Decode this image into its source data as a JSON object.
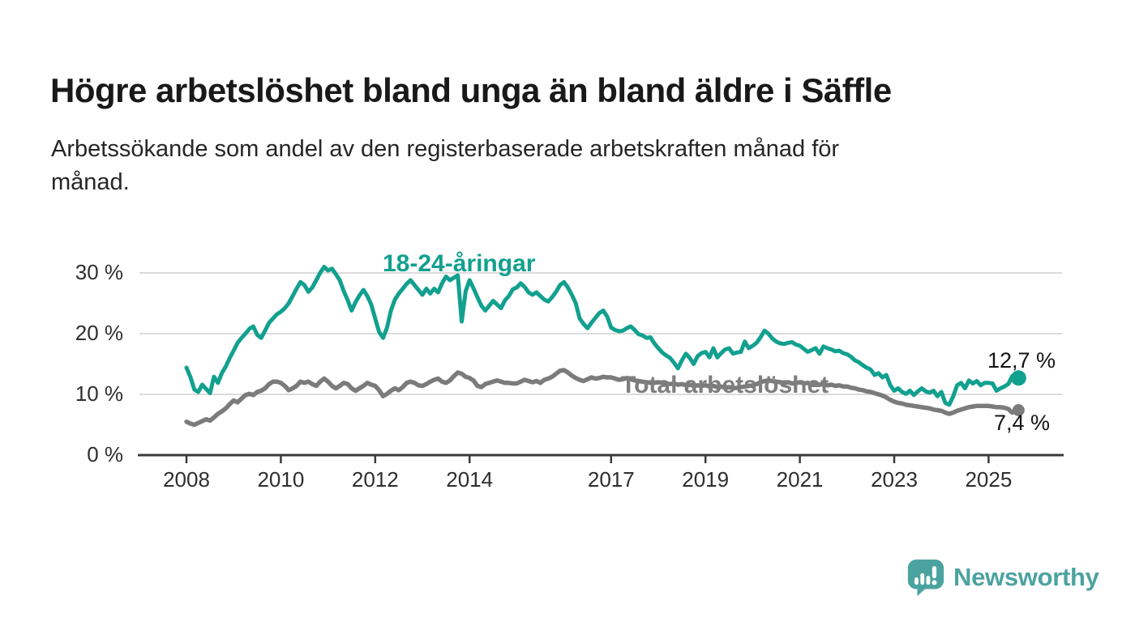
{
  "chart_data": {
    "type": "line",
    "title": "Högre arbetslöshet bland unga än bland äldre i Säffle",
    "subtitle_line1": "Arbetssökande som andel av den registerbaserade arbetskraften månad för",
    "subtitle_line2": "månad.",
    "unit": "%",
    "grid": true,
    "legend_position": "inline-labels-on-chart",
    "x_start_year": 2008,
    "x_step_months": 1,
    "x_end": "2025-08",
    "ylim": [
      0,
      33
    ],
    "y_ticks": [
      {
        "label": "30 %",
        "value": 30
      },
      {
        "label": "20 %",
        "value": 20
      },
      {
        "label": "10 %",
        "value": 10
      },
      {
        "label": "0 %",
        "value": 0
      }
    ],
    "x_ticks": [
      {
        "label": "2008",
        "year": 2008
      },
      {
        "label": "2010",
        "year": 2010
      },
      {
        "label": "2012",
        "year": 2012
      },
      {
        "label": "2014",
        "year": 2014
      },
      {
        "label": "2017",
        "year": 2017
      },
      {
        "label": "2019",
        "year": 2019
      },
      {
        "label": "2021",
        "year": 2021
      },
      {
        "label": "2023",
        "year": 2023
      },
      {
        "label": "2025",
        "year": 2025
      }
    ],
    "series": [
      {
        "name": "18-24-åringar",
        "color": "#12a08f",
        "end_label": "12,7 %",
        "end_value": 12.7,
        "values": [
          14.4,
          12.9,
          10.8,
          10.4,
          11.6,
          10.9,
          10.2,
          12.9,
          11.9,
          13.5,
          14.6,
          16.0,
          17.2,
          18.5,
          19.3,
          20.0,
          20.8,
          21.2,
          19.8,
          19.3,
          20.5,
          21.8,
          22.5,
          23.2,
          23.6,
          24.2,
          25.0,
          26.2,
          27.4,
          28.5,
          28.0,
          26.9,
          27.6,
          28.8,
          30.0,
          31.0,
          30.4,
          30.7,
          29.8,
          28.8,
          27.0,
          25.5,
          23.8,
          25.2,
          26.3,
          27.2,
          26.2,
          24.8,
          22.5,
          20.3,
          19.3,
          21.0,
          23.8,
          25.6,
          26.6,
          27.4,
          28.2,
          28.8,
          28.0,
          27.2,
          26.4,
          27.4,
          26.6,
          27.4,
          26.8,
          28.3,
          29.4,
          28.8,
          29.2,
          29.6,
          22.0,
          27.0,
          28.8,
          27.5,
          26.0,
          24.6,
          23.8,
          24.6,
          25.4,
          24.8,
          24.2,
          25.5,
          26.2,
          27.3,
          27.6,
          28.3,
          27.7,
          26.8,
          26.4,
          26.8,
          26.2,
          25.6,
          25.3,
          26.0,
          26.9,
          28.0,
          28.5,
          27.6,
          26.4,
          25.0,
          22.5,
          21.6,
          20.9,
          21.8,
          22.6,
          23.4,
          23.8,
          22.8,
          21.0,
          20.6,
          20.4,
          20.5,
          20.9,
          21.2,
          20.6,
          19.9,
          19.7,
          19.3,
          19.4,
          18.4,
          17.6,
          16.9,
          16.4,
          16.0,
          15.2,
          14.3,
          15.6,
          16.7,
          16.0,
          15.0,
          16.3,
          16.8,
          17.0,
          16.1,
          17.6,
          16.1,
          16.8,
          17.4,
          17.6,
          16.7,
          16.9,
          17.0,
          18.7,
          17.6,
          18.0,
          18.5,
          19.4,
          20.5,
          20.0,
          19.2,
          18.7,
          18.4,
          18.3,
          18.5,
          18.6,
          18.2,
          18.0,
          17.5,
          17.0,
          17.3,
          17.6,
          16.7,
          17.9,
          17.6,
          17.4,
          17.1,
          17.2,
          16.8,
          16.6,
          16.2,
          15.6,
          15.3,
          14.8,
          14.4,
          14.1,
          13.2,
          13.5,
          12.8,
          13.2,
          11.5,
          10.6,
          11.0,
          10.4,
          10.1,
          10.6,
          9.9,
          10.5,
          11.0,
          10.5,
          10.3,
          10.6,
          9.7,
          10.4,
          8.6,
          8.3,
          9.7,
          11.5,
          11.9,
          11.0,
          12.3,
          11.8,
          12.2,
          11.5,
          11.9,
          11.9,
          11.8,
          10.6,
          11.0,
          11.3,
          11.7,
          13.0,
          12.7
        ]
      },
      {
        "name": "Total arbetslöshet",
        "color": "#7b7b7b",
        "end_label": "7,4 %",
        "end_value": 7.4,
        "values": [
          5.5,
          5.2,
          5.0,
          5.3,
          5.6,
          5.9,
          5.7,
          6.2,
          6.8,
          7.2,
          7.7,
          8.4,
          9.0,
          8.7,
          9.3,
          9.9,
          10.1,
          9.9,
          10.4,
          10.6,
          11.0,
          11.7,
          12.1,
          12.1,
          11.9,
          11.4,
          10.7,
          11.0,
          11.4,
          12.1,
          11.9,
          12.1,
          11.7,
          11.4,
          12.1,
          12.6,
          12.1,
          11.4,
          11.0,
          11.4,
          11.9,
          11.7,
          11.0,
          10.6,
          11.0,
          11.4,
          11.9,
          11.6,
          11.4,
          10.7,
          9.7,
          10.1,
          10.6,
          11.0,
          10.7,
          11.2,
          11.9,
          12.1,
          11.9,
          11.5,
          11.4,
          11.7,
          12.1,
          12.4,
          12.6,
          12.1,
          11.9,
          12.3,
          13.0,
          13.6,
          13.4,
          12.9,
          12.7,
          12.3,
          11.4,
          11.2,
          11.7,
          11.9,
          12.1,
          12.3,
          12.1,
          11.9,
          11.9,
          11.8,
          11.8,
          12.1,
          12.4,
          12.2,
          12.0,
          12.2,
          11.9,
          12.4,
          12.6,
          12.9,
          13.4,
          13.9,
          14.0,
          13.6,
          13.1,
          12.7,
          12.4,
          12.2,
          12.5,
          12.8,
          12.6,
          12.7,
          12.9,
          12.8,
          12.8,
          12.6,
          12.4,
          12.5,
          12.7,
          12.5,
          12.3,
          12.2,
          12.1,
          12.0,
          11.9,
          11.9,
          12.0,
          11.9,
          11.8,
          11.7,
          11.8,
          11.6,
          11.7,
          11.5,
          11.6,
          11.4,
          11.5,
          11.4,
          11.5,
          11.3,
          11.4,
          11.2,
          11.3,
          11.1,
          11.2,
          11.0,
          11.1,
          11.2,
          11.3,
          11.4,
          11.5,
          11.7,
          12.0,
          12.2,
          12.3,
          12.2,
          12.1,
          12.0,
          11.9,
          12.0,
          11.8,
          11.9,
          12.0,
          11.8,
          11.9,
          11.7,
          11.8,
          11.6,
          11.7,
          11.5,
          11.6,
          11.4,
          11.5,
          11.3,
          11.3,
          11.1,
          11.0,
          10.8,
          10.7,
          10.5,
          10.4,
          10.2,
          10.0,
          9.8,
          9.5,
          9.1,
          8.8,
          8.6,
          8.5,
          8.3,
          8.2,
          8.1,
          8.0,
          7.9,
          7.8,
          7.7,
          7.5,
          7.4,
          7.3,
          7.0,
          6.8,
          7.0,
          7.3,
          7.5,
          7.7,
          7.9,
          8.0,
          8.1,
          8.1,
          8.1,
          8.1,
          8.0,
          7.9,
          7.9,
          7.8,
          7.6,
          7.0,
          7.4
        ]
      }
    ],
    "colors": {
      "gridline": "#dbdbdb",
      "axis": "#3a3a3a",
      "tick_text": "#2e2e2e"
    }
  },
  "branding": {
    "logo_text": "Newsworthy",
    "logo_icon": "newsworthy-bar-chart-speech-bubble-icon",
    "color": "#4ba3a0"
  }
}
